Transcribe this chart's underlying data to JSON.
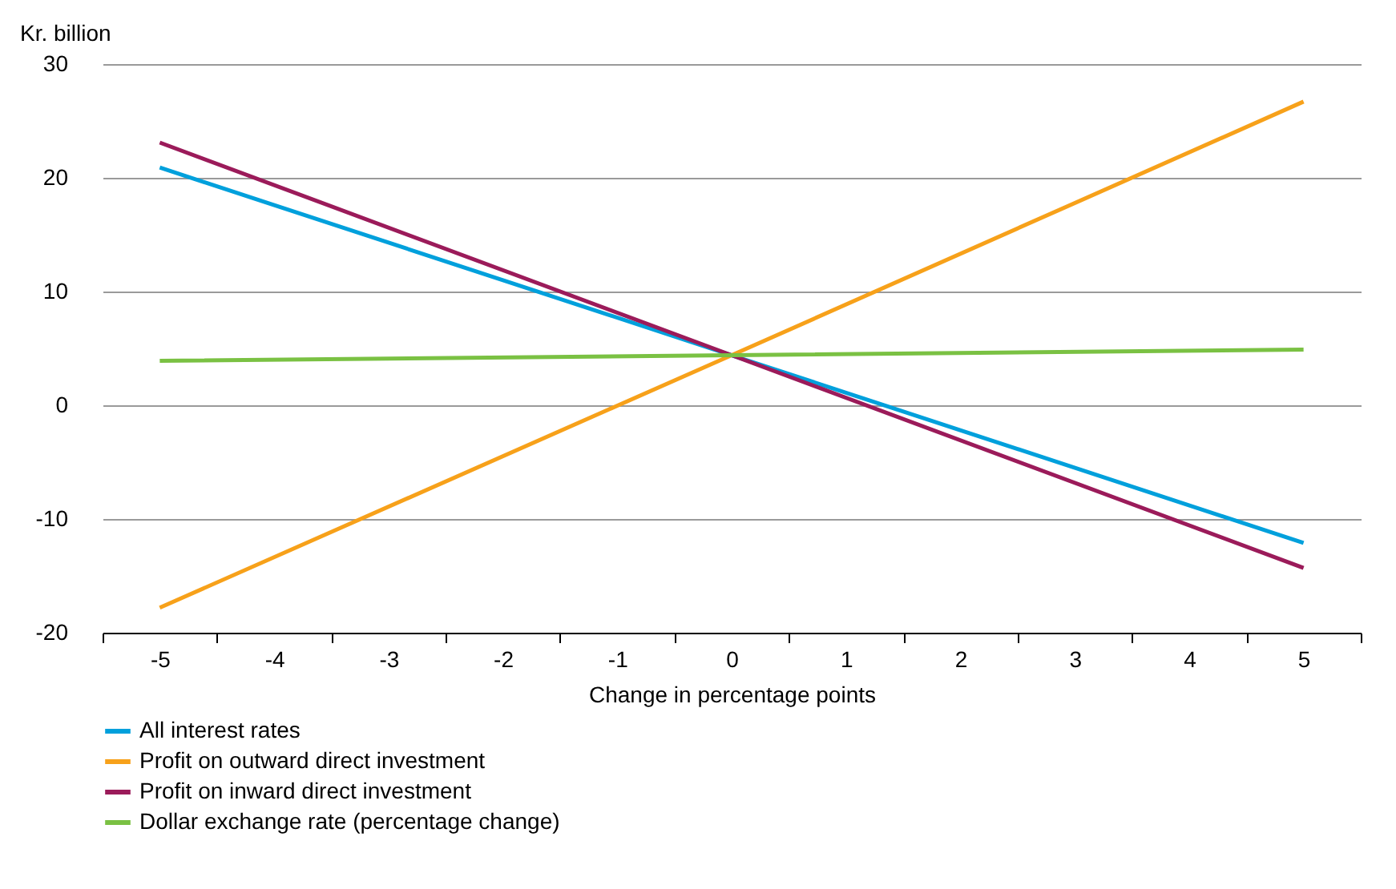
{
  "chart_data": {
    "type": "line",
    "ylabel": "Kr. billion",
    "xlabel": "Change in percentage points",
    "x": [
      -5,
      0,
      5
    ],
    "series": [
      {
        "name": "All interest rates",
        "color": "#00a0dc",
        "values": [
          20.9,
          4.4,
          -12.1
        ]
      },
      {
        "name": "Profit on outward direct investment",
        "color": "#f7a11a",
        "values": [
          -17.8,
          4.4,
          26.7
        ]
      },
      {
        "name": "Profit on inward direct investment",
        "color": "#9b1b5a",
        "values": [
          23.1,
          4.4,
          -14.3
        ]
      },
      {
        "name": "Dollar exchange rate (percentage change)",
        "color": "#7ac143",
        "values": [
          3.9,
          4.4,
          4.9
        ]
      }
    ],
    "xlim": [
      -5.5,
      5.5
    ],
    "xticks": [
      {
        "value": -5.5,
        "label": null
      },
      -5,
      {
        "value": -4.5,
        "label": null
      },
      -4,
      {
        "value": -3.5,
        "label": null
      },
      -3,
      {
        "value": -2.5,
        "label": null
      },
      -2,
      {
        "value": -1.5,
        "label": null
      },
      -1,
      {
        "value": -0.5,
        "label": null
      },
      0,
      {
        "value": 0.5,
        "label": null
      },
      1,
      {
        "value": 1.5,
        "label": null
      },
      2,
      {
        "value": 2.5,
        "label": null
      },
      3,
      {
        "value": 3.5,
        "label": null
      },
      4,
      {
        "value": 4.5,
        "label": null
      },
      5,
      {
        "value": 5.5,
        "label": null
      }
    ],
    "ylim": [
      -20,
      30
    ],
    "yticks": [
      -20,
      -10,
      0,
      10,
      20,
      30
    ],
    "grid": "y",
    "legend": "bottom",
    "marker": "none",
    "line_style": "solid"
  }
}
